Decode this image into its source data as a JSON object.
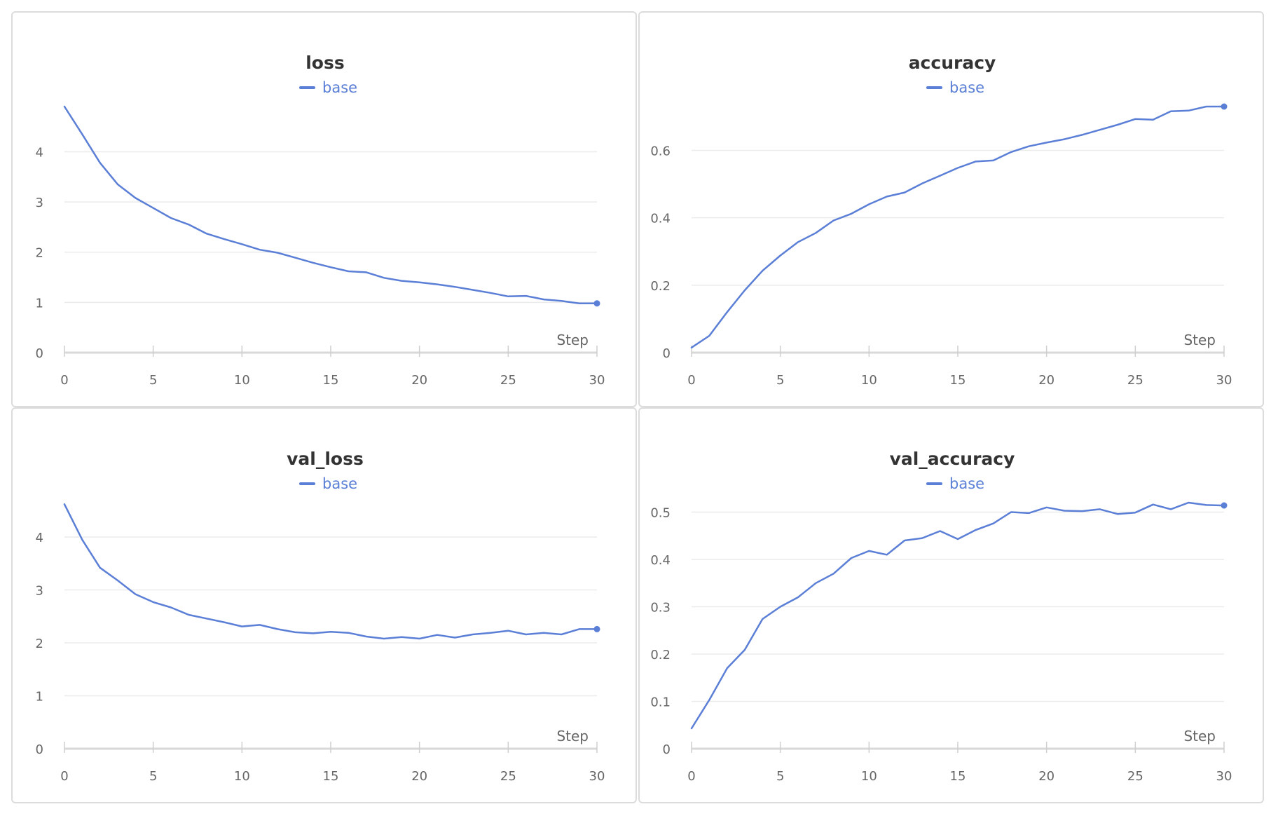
{
  "chart_data": [
    {
      "type": "line",
      "title": "loss",
      "xlabel": "Step",
      "ylabel": "",
      "xlim": [
        0,
        30
      ],
      "ylim": [
        0,
        4.9
      ],
      "xticks": [
        0,
        5,
        10,
        15,
        20,
        25,
        30
      ],
      "yticks": [
        0,
        1,
        2,
        3,
        4
      ],
      "ytick_labels": [
        "0",
        "1",
        "2",
        "3",
        "4"
      ],
      "grid": true,
      "legend": "top-center",
      "series": [
        {
          "name": "base",
          "color": "#5b7fd6",
          "x": [
            0,
            1,
            2,
            3,
            4,
            5,
            6,
            7,
            8,
            9,
            10,
            11,
            12,
            13,
            14,
            15,
            16,
            17,
            18,
            19,
            20,
            21,
            22,
            23,
            24,
            25,
            26,
            27,
            28,
            29,
            30
          ],
          "y": [
            4.9,
            4.35,
            3.78,
            3.35,
            3.08,
            2.88,
            2.68,
            2.55,
            2.37,
            2.26,
            2.16,
            2.05,
            1.99,
            1.89,
            1.79,
            1.7,
            1.62,
            1.6,
            1.49,
            1.43,
            1.4,
            1.36,
            1.31,
            1.25,
            1.19,
            1.12,
            1.13,
            1.06,
            1.03,
            0.98,
            0.98
          ]
        }
      ]
    },
    {
      "type": "line",
      "title": "accuracy",
      "xlabel": "Step",
      "ylabel": "",
      "xlim": [
        0,
        30
      ],
      "ylim": [
        0,
        0.73
      ],
      "xticks": [
        0,
        5,
        10,
        15,
        20,
        25,
        30
      ],
      "yticks": [
        0,
        0.2,
        0.4,
        0.6
      ],
      "ytick_labels": [
        "0",
        "0.2",
        "0.4",
        "0.6"
      ],
      "grid": true,
      "legend": "top-center",
      "series": [
        {
          "name": "base",
          "color": "#5b7fd6",
          "x": [
            0,
            1,
            2,
            3,
            4,
            5,
            6,
            7,
            8,
            9,
            10,
            11,
            12,
            13,
            14,
            15,
            16,
            17,
            18,
            19,
            20,
            21,
            22,
            23,
            24,
            25,
            26,
            27,
            28,
            29,
            30
          ],
          "y": [
            0.015,
            0.05,
            0.12,
            0.185,
            0.243,
            0.288,
            0.328,
            0.355,
            0.392,
            0.412,
            0.44,
            0.463,
            0.475,
            0.502,
            0.525,
            0.548,
            0.567,
            0.57,
            0.595,
            0.612,
            0.623,
            0.633,
            0.646,
            0.661,
            0.676,
            0.693,
            0.691,
            0.716,
            0.718,
            0.73,
            0.73
          ]
        }
      ]
    },
    {
      "type": "line",
      "title": "val_loss",
      "xlabel": "Step",
      "ylabel": "",
      "xlim": [
        0,
        30
      ],
      "ylim": [
        0,
        4.65
      ],
      "xticks": [
        0,
        5,
        10,
        15,
        20,
        25,
        30
      ],
      "yticks": [
        0,
        1,
        2,
        3,
        4
      ],
      "ytick_labels": [
        "0",
        "1",
        "2",
        "3",
        "4"
      ],
      "grid": true,
      "legend": "top-center",
      "series": [
        {
          "name": "base",
          "color": "#5b7fd6",
          "x": [
            0,
            1,
            2,
            3,
            4,
            5,
            6,
            7,
            8,
            9,
            10,
            11,
            12,
            13,
            14,
            15,
            16,
            17,
            18,
            19,
            20,
            21,
            22,
            23,
            24,
            25,
            26,
            27,
            28,
            29,
            30
          ],
          "y": [
            4.62,
            3.95,
            3.42,
            3.18,
            2.92,
            2.77,
            2.67,
            2.53,
            2.46,
            2.39,
            2.31,
            2.34,
            2.26,
            2.2,
            2.18,
            2.21,
            2.19,
            2.12,
            2.08,
            2.11,
            2.08,
            2.15,
            2.1,
            2.16,
            2.19,
            2.23,
            2.16,
            2.19,
            2.16,
            2.26,
            2.26
          ]
        }
      ]
    },
    {
      "type": "line",
      "title": "val_accuracy",
      "xlabel": "Step",
      "ylabel": "",
      "xlim": [
        0,
        30
      ],
      "ylim": [
        0,
        0.52
      ],
      "xticks": [
        0,
        5,
        10,
        15,
        20,
        25,
        30
      ],
      "yticks": [
        0,
        0.1,
        0.2,
        0.3,
        0.4,
        0.5
      ],
      "ytick_labels": [
        "0",
        "0.1",
        "0.2",
        "0.3",
        "0.4",
        "0.5"
      ],
      "grid": true,
      "legend": "top-center",
      "series": [
        {
          "name": "base",
          "color": "#5b7fd6",
          "x": [
            0,
            1,
            2,
            3,
            4,
            5,
            6,
            7,
            8,
            9,
            10,
            11,
            12,
            13,
            14,
            15,
            16,
            17,
            18,
            19,
            20,
            21,
            22,
            23,
            24,
            25,
            26,
            27,
            28,
            29,
            30
          ],
          "y": [
            0.043,
            0.103,
            0.17,
            0.209,
            0.274,
            0.3,
            0.32,
            0.35,
            0.37,
            0.403,
            0.418,
            0.41,
            0.44,
            0.445,
            0.46,
            0.443,
            0.462,
            0.476,
            0.5,
            0.498,
            0.51,
            0.503,
            0.502,
            0.506,
            0.496,
            0.499,
            0.516,
            0.506,
            0.52,
            0.515,
            0.514
          ]
        }
      ]
    }
  ]
}
